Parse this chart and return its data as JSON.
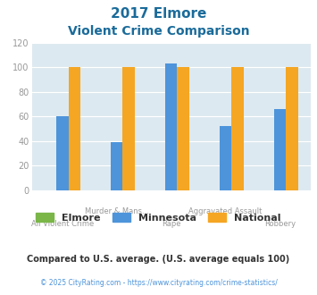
{
  "title_line1": "2017 Elmore",
  "title_line2": "Violent Crime Comparison",
  "elmore_values": [
    0,
    0,
    0,
    0,
    0
  ],
  "minnesota_values": [
    60,
    39,
    103,
    52,
    66
  ],
  "national_values": [
    100,
    100,
    100,
    100,
    100
  ],
  "elmore_color": "#7ab648",
  "minnesota_color": "#4d94db",
  "national_color": "#f5a623",
  "plot_bg_color": "#dde9f0",
  "fig_bg_color": "#ffffff",
  "ylim": [
    0,
    120
  ],
  "yticks": [
    0,
    20,
    40,
    60,
    80,
    100,
    120
  ],
  "title_color": "#1a6b9a",
  "axis_label_color": "#999999",
  "legend_text_color": "#333333",
  "footnote1": "Compared to U.S. average. (U.S. average equals 100)",
  "footnote2": "© 2025 CityRating.com - https://www.cityrating.com/crime-statistics/",
  "footnote1_color": "#333333",
  "footnote2_color": "#4d94db",
  "bar_width": 0.22,
  "top_labels": [
    "",
    "Murder & Mans...",
    "",
    "Aggravated Assault",
    ""
  ],
  "bottom_labels": [
    "All Violent Crime",
    "",
    "Rape",
    "",
    "Robbery"
  ]
}
